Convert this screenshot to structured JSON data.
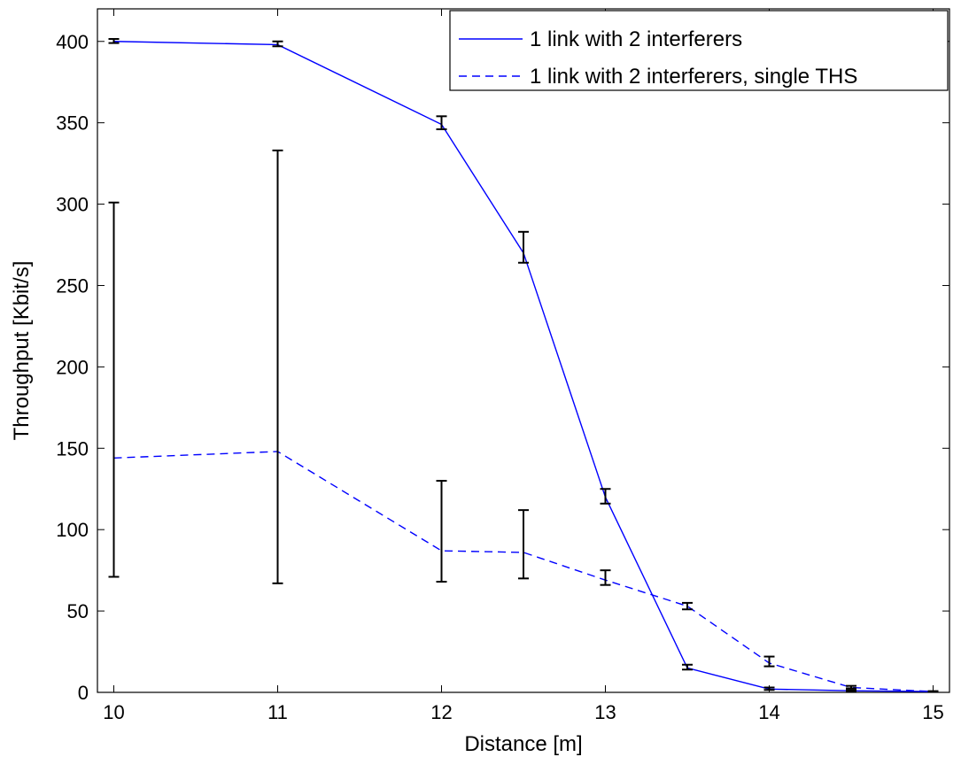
{
  "chart_data": {
    "type": "line",
    "title": "",
    "xlabel": "Distance [m]",
    "ylabel": "Throughput [Kbit/s]",
    "xlim": [
      9.9,
      15.1
    ],
    "ylim": [
      0,
      420
    ],
    "xticks": [
      10,
      11,
      12,
      13,
      14,
      15
    ],
    "yticks": [
      0,
      50,
      100,
      150,
      200,
      250,
      300,
      350,
      400
    ],
    "grid": false,
    "legend_position": "top-right",
    "series": [
      {
        "name": "1 link with 2 interferers",
        "style": "solid",
        "color": "#0000ff",
        "x": [
          10,
          11,
          12,
          12.5,
          13,
          13.5,
          14,
          14.5,
          15
        ],
        "y": [
          400,
          398,
          349,
          270,
          120,
          15,
          2,
          1,
          0.5
        ],
        "err_low": [
          399,
          397,
          346,
          264,
          116,
          14,
          1.5,
          0.8,
          0.3
        ],
        "err_high": [
          401.5,
          400,
          354,
          283,
          125,
          17,
          3,
          1.5,
          0.7
        ]
      },
      {
        "name": "1 link with 2 interferers, single THS",
        "style": "dashed",
        "color": "#0000ff",
        "x": [
          10,
          11,
          12,
          12.5,
          13,
          13.5,
          14,
          14.5,
          15
        ],
        "y": [
          144,
          148,
          87,
          86,
          69,
          53,
          18,
          3,
          0.5
        ],
        "err_low": [
          71,
          67,
          68,
          70,
          66,
          51,
          16,
          2.5,
          0.3
        ],
        "err_high": [
          301,
          333,
          130,
          112,
          75,
          55,
          22,
          4,
          0.7
        ]
      }
    ],
    "errorbar_color": "#000000"
  }
}
